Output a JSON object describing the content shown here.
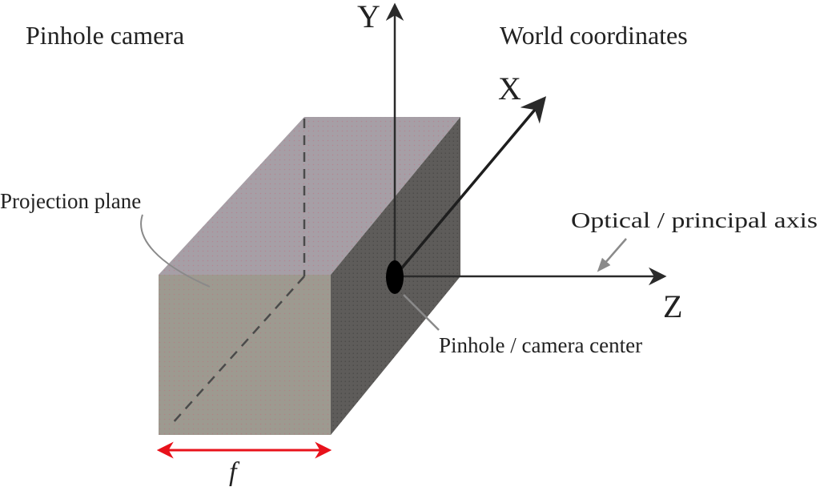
{
  "title": "Pinhole camera",
  "world_title": "World coordinates",
  "labels": {
    "projection_plane": "Projection plane",
    "optical_axis": "Optical / principal axis",
    "pinhole": "Pinhole / camera center",
    "focal_length": "f"
  },
  "axes": {
    "x": "X",
    "y": "Y",
    "z": "Z"
  },
  "colors": {
    "top_face": "#a69fa6",
    "front_face": "#9d9a90",
    "side_face": "#5e5c5a",
    "axis": "#2a2a2a",
    "focal_arrow": "#e8121b",
    "pointer": "#8a8a8a"
  }
}
